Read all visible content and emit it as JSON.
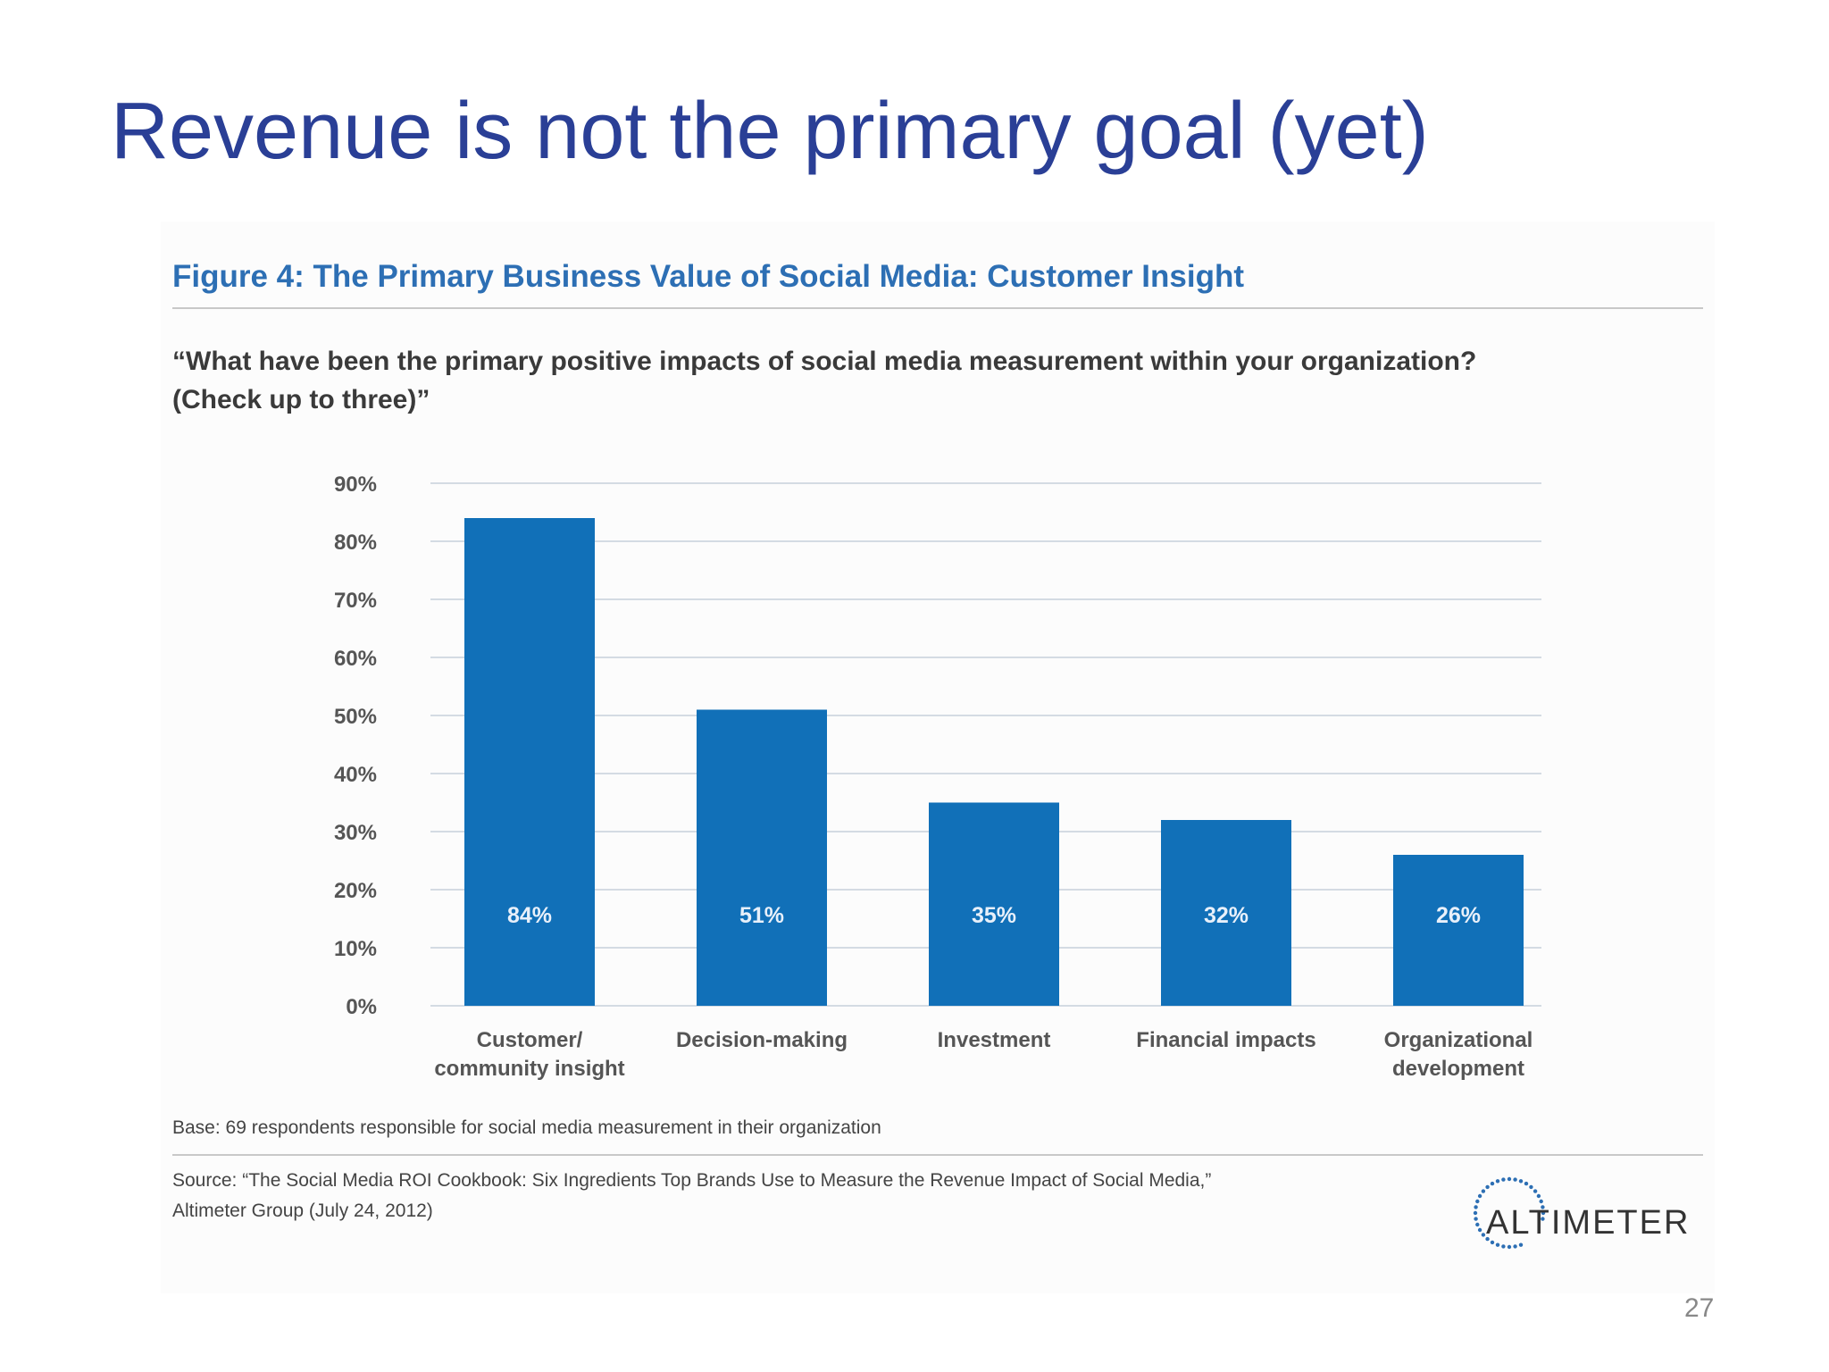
{
  "slide": {
    "title": "Revenue is not the primary goal (yet)",
    "page_number": "27"
  },
  "figure": {
    "title": "Figure 4: The Primary Business Value of Social Media: Customer Insight",
    "question_line1": "“What have been the primary positive impacts of social media measurement within your organization?",
    "question_line2": "(Check up to three)”",
    "base_note": "Base: 69 respondents responsible for social media measurement in their organization",
    "source_line1": "Source: “The Social Media ROI Cookbook: Six Ingredients Top Brands Use to Measure the Revenue Impact of Social Media,”",
    "source_line2": "Altimeter Group (July 24, 2012)",
    "logo_text": "ALTIMETER"
  },
  "colors": {
    "bar": "#1170b8",
    "title": "#2a3f96",
    "figure_title": "#2d6fb4",
    "grid": "#d4dbe3"
  },
  "chart_data": {
    "type": "bar",
    "categories": [
      [
        "Customer/",
        "community insight"
      ],
      [
        "Decision-making"
      ],
      [
        "Investment"
      ],
      [
        "Financial impacts"
      ],
      [
        "Organizational",
        "development"
      ]
    ],
    "values": [
      84,
      51,
      35,
      32,
      26
    ],
    "value_labels": [
      "84%",
      "51%",
      "35%",
      "32%",
      "26%"
    ],
    "y_ticks": [
      "0%",
      "10%",
      "20%",
      "30%",
      "40%",
      "50%",
      "60%",
      "70%",
      "80%",
      "90%"
    ],
    "ylim": [
      0,
      90
    ],
    "grid": true,
    "legend": "none"
  }
}
